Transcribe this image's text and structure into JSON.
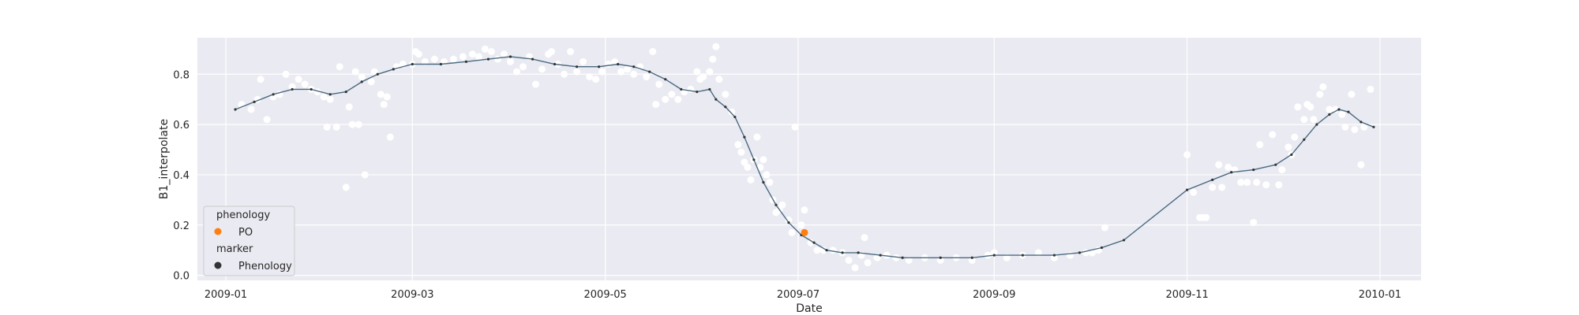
{
  "chart_data": {
    "type": "scatter",
    "xlabel": "Date",
    "ylabel": "B1_interpolate",
    "x_type": "date",
    "xlim": [
      "2008-12-23",
      "2010-01-14"
    ],
    "ylim": [
      -0.02,
      0.945
    ],
    "xticks": [
      {
        "date": "2009-01-01",
        "label": "2009-01"
      },
      {
        "date": "2009-03-01",
        "label": "2009-03"
      },
      {
        "date": "2009-05-01",
        "label": "2009-05"
      },
      {
        "date": "2009-07-01",
        "label": "2009-07"
      },
      {
        "date": "2009-09-01",
        "label": "2009-09"
      },
      {
        "date": "2009-11-01",
        "label": "2009-11"
      },
      {
        "date": "2010-01-01",
        "label": "2010-01"
      }
    ],
    "yticks": [
      {
        "value": 0.0,
        "label": "0.0"
      },
      {
        "value": 0.2,
        "label": "0.2"
      },
      {
        "value": 0.4,
        "label": "0.4"
      },
      {
        "value": 0.6,
        "label": "0.6"
      },
      {
        "value": 0.8,
        "label": "0.8"
      }
    ],
    "grid": true,
    "background": "#eaeaf2",
    "legend_placement": "lower-left",
    "legend": {
      "title_hue": "phenology",
      "hue_entries": [
        {
          "label": "PO",
          "color": "#ff7f0e"
        }
      ],
      "title_style": "marker",
      "style_entries": [
        {
          "label": "Phenology",
          "color": "#333333"
        }
      ]
    },
    "series": [
      {
        "kind": "scatter",
        "color": "#ffffff",
        "points": [
          [
            "2009-01-06",
            0.68
          ],
          [
            "2009-01-09",
            0.66
          ],
          [
            "2009-01-11",
            0.7
          ],
          [
            "2009-01-12",
            0.78
          ],
          [
            "2009-01-14",
            0.62
          ],
          [
            "2009-01-16",
            0.71
          ],
          [
            "2009-01-18",
            0.72
          ],
          [
            "2009-01-20",
            0.8
          ],
          [
            "2009-01-22",
            0.75
          ],
          [
            "2009-01-24",
            0.78
          ],
          [
            "2009-01-26",
            0.76
          ],
          [
            "2009-01-28",
            0.74
          ],
          [
            "2009-01-30",
            0.73
          ],
          [
            "2009-02-01",
            0.71
          ],
          [
            "2009-02-02",
            0.59
          ],
          [
            "2009-02-03",
            0.7
          ],
          [
            "2009-02-05",
            0.59
          ],
          [
            "2009-02-06",
            0.83
          ],
          [
            "2009-02-08",
            0.35
          ],
          [
            "2009-02-09",
            0.67
          ],
          [
            "2009-02-10",
            0.6
          ],
          [
            "2009-02-11",
            0.81
          ],
          [
            "2009-02-12",
            0.6
          ],
          [
            "2009-02-13",
            0.79
          ],
          [
            "2009-02-14",
            0.4
          ],
          [
            "2009-02-16",
            0.77
          ],
          [
            "2009-02-17",
            0.81
          ],
          [
            "2009-02-19",
            0.72
          ],
          [
            "2009-02-20",
            0.68
          ],
          [
            "2009-02-21",
            0.71
          ],
          [
            "2009-02-22",
            0.55
          ],
          [
            "2009-02-24",
            0.83
          ],
          [
            "2009-02-26",
            0.84
          ],
          [
            "2009-03-01",
            0.84
          ],
          [
            "2009-03-02",
            0.89
          ],
          [
            "2009-03-03",
            0.88
          ],
          [
            "2009-03-05",
            0.85
          ],
          [
            "2009-03-08",
            0.86
          ],
          [
            "2009-03-11",
            0.85
          ],
          [
            "2009-03-14",
            0.86
          ],
          [
            "2009-03-17",
            0.87
          ],
          [
            "2009-03-20",
            0.88
          ],
          [
            "2009-03-22",
            0.87
          ],
          [
            "2009-03-24",
            0.9
          ],
          [
            "2009-03-26",
            0.89
          ],
          [
            "2009-03-28",
            0.86
          ],
          [
            "2009-03-30",
            0.88
          ],
          [
            "2009-04-01",
            0.85
          ],
          [
            "2009-04-03",
            0.81
          ],
          [
            "2009-04-05",
            0.83
          ],
          [
            "2009-04-07",
            0.87
          ],
          [
            "2009-04-09",
            0.76
          ],
          [
            "2009-04-11",
            0.82
          ],
          [
            "2009-04-13",
            0.88
          ],
          [
            "2009-04-14",
            0.89
          ],
          [
            "2009-04-16",
            0.84
          ],
          [
            "2009-04-18",
            0.8
          ],
          [
            "2009-04-20",
            0.89
          ],
          [
            "2009-04-22",
            0.81
          ],
          [
            "2009-04-24",
            0.85
          ],
          [
            "2009-04-26",
            0.79
          ],
          [
            "2009-04-28",
            0.78
          ],
          [
            "2009-04-30",
            0.81
          ],
          [
            "2009-05-02",
            0.84
          ],
          [
            "2009-05-04",
            0.85
          ],
          [
            "2009-05-06",
            0.81
          ],
          [
            "2009-05-08",
            0.82
          ],
          [
            "2009-05-10",
            0.8
          ],
          [
            "2009-05-12",
            0.83
          ],
          [
            "2009-05-14",
            0.79
          ],
          [
            "2009-05-16",
            0.89
          ],
          [
            "2009-05-17",
            0.68
          ],
          [
            "2009-05-18",
            0.76
          ],
          [
            "2009-05-20",
            0.7
          ],
          [
            "2009-05-22",
            0.72
          ],
          [
            "2009-05-24",
            0.7
          ],
          [
            "2009-05-26",
            0.73
          ],
          [
            "2009-05-28",
            0.74
          ],
          [
            "2009-05-30",
            0.81
          ],
          [
            "2009-05-31",
            0.78
          ],
          [
            "2009-06-01",
            0.79
          ],
          [
            "2009-06-03",
            0.81
          ],
          [
            "2009-06-04",
            0.86
          ],
          [
            "2009-06-05",
            0.91
          ],
          [
            "2009-06-06",
            0.78
          ],
          [
            "2009-06-08",
            0.72
          ],
          [
            "2009-06-10",
            0.65
          ],
          [
            "2009-06-12",
            0.52
          ],
          [
            "2009-06-13",
            0.49
          ],
          [
            "2009-06-14",
            0.45
          ],
          [
            "2009-06-15",
            0.43
          ],
          [
            "2009-06-16",
            0.38
          ],
          [
            "2009-06-17",
            0.46
          ],
          [
            "2009-06-18",
            0.55
          ],
          [
            "2009-06-19",
            0.43
          ],
          [
            "2009-06-20",
            0.46
          ],
          [
            "2009-06-21",
            0.4
          ],
          [
            "2009-06-22",
            0.37
          ],
          [
            "2009-06-23",
            0.3
          ],
          [
            "2009-06-24",
            0.25
          ],
          [
            "2009-06-25",
            0.26
          ],
          [
            "2009-06-26",
            0.28
          ],
          [
            "2009-06-28",
            0.22
          ],
          [
            "2009-06-29",
            0.17
          ],
          [
            "2009-06-30",
            0.59
          ],
          [
            "2009-07-02",
            0.2
          ],
          [
            "2009-07-03",
            0.26
          ],
          [
            "2009-07-05",
            0.13
          ],
          [
            "2009-07-07",
            0.1
          ],
          [
            "2009-07-09",
            0.1
          ],
          [
            "2009-07-12",
            0.1
          ],
          [
            "2009-07-15",
            0.09
          ],
          [
            "2009-07-17",
            0.06
          ],
          [
            "2009-07-19",
            0.03
          ],
          [
            "2009-07-21",
            0.08
          ],
          [
            "2009-07-22",
            0.15
          ],
          [
            "2009-07-23",
            0.05
          ],
          [
            "2009-07-26",
            0.07
          ],
          [
            "2009-07-29",
            0.08
          ],
          [
            "2009-08-01",
            0.07
          ],
          [
            "2009-08-05",
            0.06
          ],
          [
            "2009-08-10",
            0.07
          ],
          [
            "2009-08-15",
            0.06
          ],
          [
            "2009-08-20",
            0.07
          ],
          [
            "2009-08-25",
            0.06
          ],
          [
            "2009-08-30",
            0.08
          ],
          [
            "2009-09-01",
            0.09
          ],
          [
            "2009-09-05",
            0.07
          ],
          [
            "2009-09-10",
            0.08
          ],
          [
            "2009-09-15",
            0.09
          ],
          [
            "2009-09-20",
            0.07
          ],
          [
            "2009-09-25",
            0.08
          ],
          [
            "2009-09-30",
            0.09
          ],
          [
            "2009-10-02",
            0.09
          ],
          [
            "2009-10-04",
            0.1
          ],
          [
            "2009-10-06",
            0.19
          ],
          [
            "2009-11-01",
            0.48
          ],
          [
            "2009-11-03",
            0.33
          ],
          [
            "2009-11-05",
            0.23
          ],
          [
            "2009-11-06",
            0.23
          ],
          [
            "2009-11-07",
            0.23
          ],
          [
            "2009-11-09",
            0.35
          ],
          [
            "2009-11-11",
            0.44
          ],
          [
            "2009-11-12",
            0.35
          ],
          [
            "2009-11-14",
            0.43
          ],
          [
            "2009-11-16",
            0.42
          ],
          [
            "2009-11-18",
            0.37
          ],
          [
            "2009-11-20",
            0.37
          ],
          [
            "2009-11-22",
            0.21
          ],
          [
            "2009-11-23",
            0.37
          ],
          [
            "2009-11-24",
            0.52
          ],
          [
            "2009-11-26",
            0.36
          ],
          [
            "2009-11-28",
            0.56
          ],
          [
            "2009-11-30",
            0.36
          ],
          [
            "2009-12-01",
            0.42
          ],
          [
            "2009-12-03",
            0.51
          ],
          [
            "2009-12-04",
            0.48
          ],
          [
            "2009-12-05",
            0.55
          ],
          [
            "2009-12-06",
            0.67
          ],
          [
            "2009-12-08",
            0.62
          ],
          [
            "2009-12-09",
            0.68
          ],
          [
            "2009-12-10",
            0.67
          ],
          [
            "2009-12-11",
            0.62
          ],
          [
            "2009-12-13",
            0.72
          ],
          [
            "2009-12-14",
            0.75
          ],
          [
            "2009-12-16",
            0.66
          ],
          [
            "2009-12-18",
            0.66
          ],
          [
            "2009-12-20",
            0.64
          ],
          [
            "2009-12-21",
            0.59
          ],
          [
            "2009-12-23",
            0.72
          ],
          [
            "2009-12-24",
            0.58
          ],
          [
            "2009-12-26",
            0.44
          ],
          [
            "2009-12-27",
            0.59
          ],
          [
            "2009-12-29",
            0.74
          ]
        ]
      },
      {
        "kind": "line",
        "color": "#4a6a80",
        "marker_color": "#333333",
        "points": [
          [
            "2009-01-04",
            0.66
          ],
          [
            "2009-01-10",
            0.69
          ],
          [
            "2009-01-16",
            0.72
          ],
          [
            "2009-01-22",
            0.74
          ],
          [
            "2009-01-28",
            0.74
          ],
          [
            "2009-02-03",
            0.72
          ],
          [
            "2009-02-08",
            0.73
          ],
          [
            "2009-02-13",
            0.77
          ],
          [
            "2009-02-18",
            0.8
          ],
          [
            "2009-02-23",
            0.82
          ],
          [
            "2009-03-01",
            0.84
          ],
          [
            "2009-03-10",
            0.84
          ],
          [
            "2009-03-18",
            0.85
          ],
          [
            "2009-03-25",
            0.86
          ],
          [
            "2009-04-01",
            0.87
          ],
          [
            "2009-04-08",
            0.86
          ],
          [
            "2009-04-15",
            0.84
          ],
          [
            "2009-04-22",
            0.83
          ],
          [
            "2009-04-29",
            0.83
          ],
          [
            "2009-05-05",
            0.84
          ],
          [
            "2009-05-10",
            0.83
          ],
          [
            "2009-05-15",
            0.81
          ],
          [
            "2009-05-20",
            0.78
          ],
          [
            "2009-05-25",
            0.74
          ],
          [
            "2009-05-30",
            0.73
          ],
          [
            "2009-06-03",
            0.74
          ],
          [
            "2009-06-05",
            0.7
          ],
          [
            "2009-06-08",
            0.67
          ],
          [
            "2009-06-11",
            0.63
          ],
          [
            "2009-06-14",
            0.55
          ],
          [
            "2009-06-17",
            0.46
          ],
          [
            "2009-06-20",
            0.37
          ],
          [
            "2009-06-24",
            0.28
          ],
          [
            "2009-06-28",
            0.21
          ],
          [
            "2009-07-02",
            0.16
          ],
          [
            "2009-07-06",
            0.13
          ],
          [
            "2009-07-10",
            0.1
          ],
          [
            "2009-07-15",
            0.09
          ],
          [
            "2009-07-20",
            0.09
          ],
          [
            "2009-07-27",
            0.08
          ],
          [
            "2009-08-03",
            0.07
          ],
          [
            "2009-08-15",
            0.07
          ],
          [
            "2009-08-25",
            0.07
          ],
          [
            "2009-09-01",
            0.08
          ],
          [
            "2009-09-10",
            0.08
          ],
          [
            "2009-09-20",
            0.08
          ],
          [
            "2009-09-28",
            0.09
          ],
          [
            "2009-10-05",
            0.11
          ],
          [
            "2009-10-12",
            0.14
          ],
          [
            "2009-11-01",
            0.34
          ],
          [
            "2009-11-09",
            0.38
          ],
          [
            "2009-11-15",
            0.41
          ],
          [
            "2009-11-22",
            0.42
          ],
          [
            "2009-11-29",
            0.44
          ],
          [
            "2009-12-04",
            0.48
          ],
          [
            "2009-12-08",
            0.54
          ],
          [
            "2009-12-12",
            0.6
          ],
          [
            "2009-12-16",
            0.64
          ],
          [
            "2009-12-19",
            0.66
          ],
          [
            "2009-12-22",
            0.65
          ],
          [
            "2009-12-26",
            0.61
          ],
          [
            "2009-12-30",
            0.59
          ]
        ]
      },
      {
        "kind": "highlight",
        "name": "PO",
        "color": "#ff7f0e",
        "points": [
          [
            "2009-07-03",
            0.17
          ]
        ]
      }
    ]
  }
}
